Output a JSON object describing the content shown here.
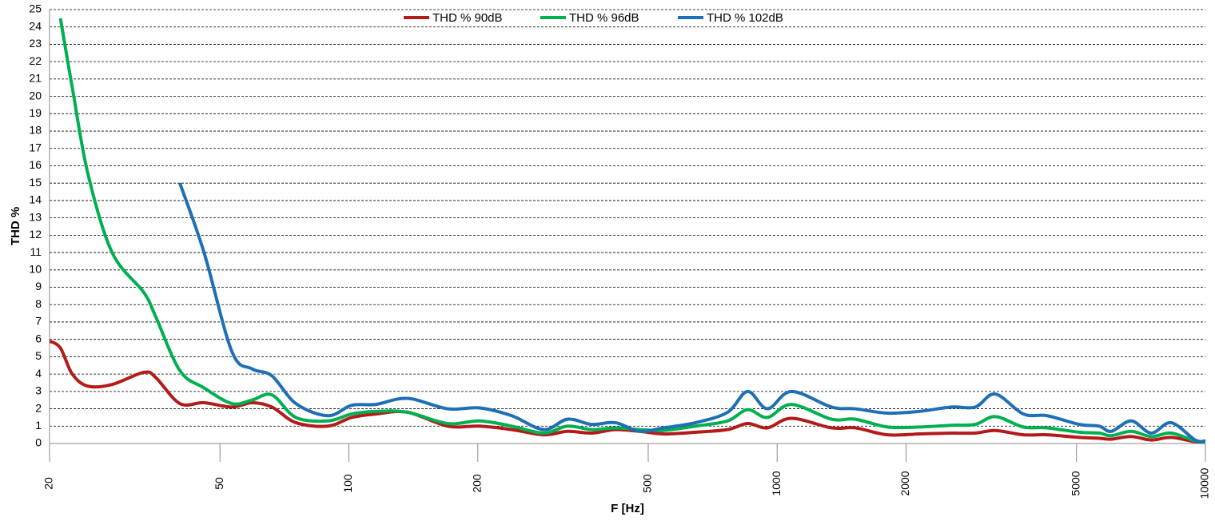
{
  "chart_data": {
    "type": "line",
    "x_label": "F [Hz]",
    "y_label": "THD %",
    "xscale": "log",
    "xlim": [
      20,
      10000
    ],
    "xticks": [
      20,
      50,
      100,
      200,
      500,
      1000,
      2000,
      5000,
      10000
    ],
    "ylim": [
      0,
      25
    ],
    "yticks": [
      0,
      1,
      2,
      3,
      4,
      5,
      6,
      7,
      8,
      9,
      10,
      11,
      12,
      13,
      14,
      15,
      16,
      17,
      18,
      19,
      20,
      21,
      22,
      23,
      24,
      25
    ],
    "grid": true,
    "legend": "top",
    "x": [
      20,
      21.2,
      22.6,
      24.6,
      28,
      33.2,
      35.4,
      40.3,
      45.9,
      53.3,
      59.4,
      66.1,
      75.2,
      89.3,
      101.5,
      115.5,
      137,
      170,
      202,
      240,
      285,
      324,
      369,
      419,
      477,
      543,
      645,
      766,
      853,
      949,
      1080,
      1339,
      1522,
      1808,
      2148,
      2551,
      2902,
      3232,
      3756,
      4272,
      5074,
      5650,
      6026,
      6712,
      7472,
      8318,
      9464,
      10000
    ],
    "series": [
      {
        "name": "THD % 90dB",
        "color": "#b31b1b",
        "values": [
          5.9,
          5.5,
          4.0,
          3.3,
          3.4,
          4.1,
          3.8,
          2.3,
          2.35,
          2.1,
          2.35,
          2.1,
          1.2,
          1.0,
          1.5,
          1.7,
          1.8,
          1.0,
          1.0,
          0.8,
          0.5,
          0.7,
          0.6,
          0.8,
          0.7,
          0.55,
          0.65,
          0.8,
          1.15,
          0.9,
          1.45,
          0.9,
          0.9,
          0.5,
          0.55,
          0.6,
          0.6,
          0.75,
          0.5,
          0.5,
          0.35,
          0.3,
          0.25,
          0.4,
          0.2,
          0.35,
          0.1,
          0.1
        ]
      },
      {
        "name": "THD % 96dB",
        "color": "#00b050",
        "values": [
          null,
          24.5,
          20.5,
          15.5,
          11,
          8.7,
          7.3,
          4.2,
          3.2,
          2.3,
          2.5,
          2.8,
          1.5,
          1.3,
          1.7,
          1.85,
          1.8,
          1.15,
          1.3,
          1.0,
          0.6,
          1.0,
          0.8,
          0.9,
          0.8,
          0.75,
          1.0,
          1.3,
          1.95,
          1.5,
          2.25,
          1.4,
          1.4,
          0.95,
          0.95,
          1.05,
          1.1,
          1.55,
          0.95,
          0.9,
          0.65,
          0.6,
          0.45,
          0.7,
          0.4,
          0.6,
          0.15,
          0.1
        ]
      },
      {
        "name": "THD % 102dB",
        "color": "#1f6fb5",
        "values": [
          null,
          null,
          null,
          null,
          null,
          null,
          null,
          15,
          11,
          5.3,
          4.3,
          3.9,
          2.3,
          1.6,
          2.2,
          2.25,
          2.6,
          2.0,
          2.05,
          1.6,
          0.8,
          1.4,
          1.1,
          1.2,
          0.7,
          0.9,
          1.2,
          1.8,
          3.0,
          2.0,
          3.0,
          2.1,
          2.0,
          1.75,
          1.85,
          2.1,
          2.1,
          2.85,
          1.7,
          1.6,
          1.1,
          1.0,
          0.7,
          1.3,
          0.6,
          1.2,
          0.2,
          0.15
        ]
      }
    ]
  }
}
